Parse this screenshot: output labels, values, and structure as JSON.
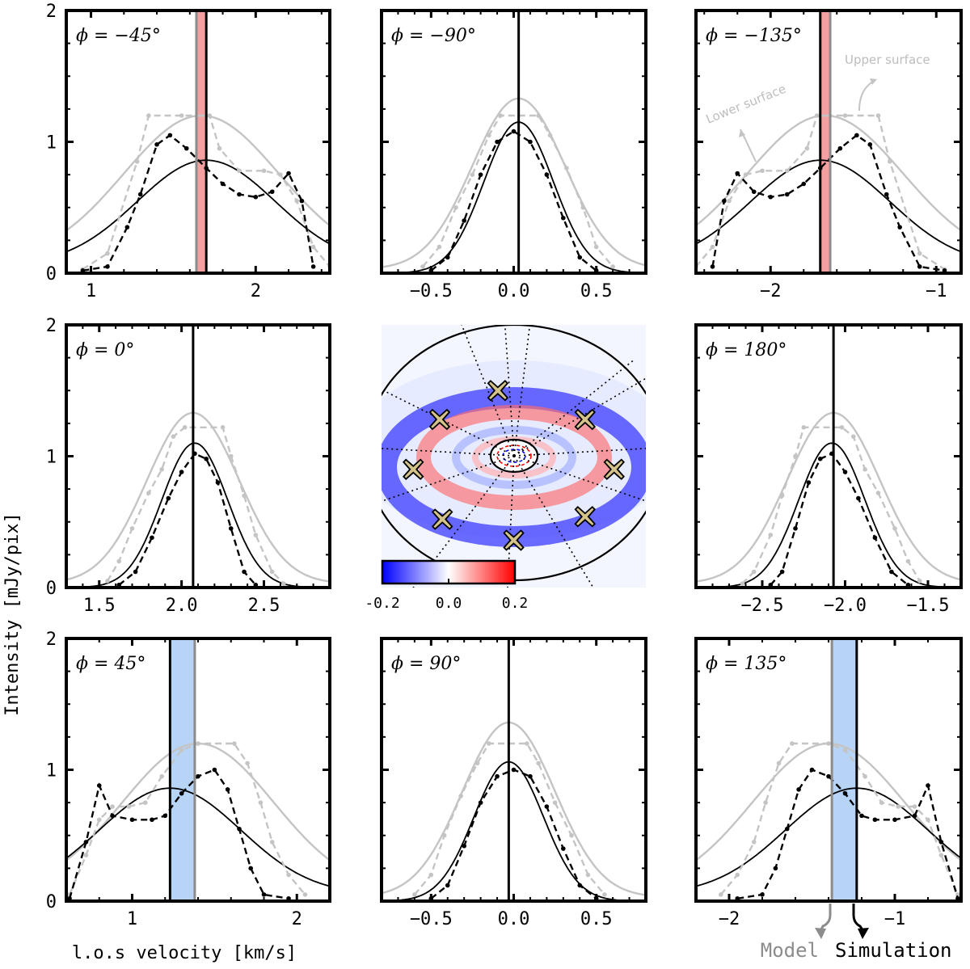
{
  "chart_data": {
    "type": "line",
    "ylabel": "Intensity [mJy/pix]",
    "xlabel": "l.o.s velocity [km/s]",
    "ylim": [
      0,
      2
    ],
    "y_ticks": [
      "0",
      "1",
      "2"
    ],
    "legend": {
      "model": "Model",
      "simulation": "Simulation"
    },
    "annotations": {
      "lower_surface": "Lower surface",
      "upper_surface": "Upper surface"
    },
    "colors": {
      "model": "#8c8c8c",
      "simulation": "#000000",
      "light": "#c4c4c4",
      "red_band": "#f4a0a0",
      "blue_band": "#b7d4f7"
    },
    "colorbar": {
      "ticks": [
        "-0.2",
        "0.0",
        "0.2"
      ],
      "range": [
        -0.2,
        0.2
      ]
    },
    "map_markers": [
      {
        "ix": 0.44,
        "iy": 0.25
      },
      {
        "ix": 0.22,
        "iy": 0.36
      },
      {
        "ix": 0.77,
        "iy": 0.36
      },
      {
        "ix": 0.12,
        "iy": 0.55
      },
      {
        "ix": 0.88,
        "iy": 0.55
      },
      {
        "ix": 0.23,
        "iy": 0.74
      },
      {
        "ix": 0.77,
        "iy": 0.73
      },
      {
        "ix": 0.5,
        "iy": 0.82
      }
    ],
    "panels": [
      {
        "id": "p-45",
        "phi": "ϕ = −45°",
        "xlim": [
          0.85,
          2.45
        ],
        "x_ticks": [
          {
            "v": 1,
            "label": "1"
          },
          {
            "v": 2,
            "label": "2"
          }
        ],
        "model_v": 1.64,
        "sim_v": 1.7,
        "band": "red",
        "light_curve": {
          "mu": 1.67,
          "sigma": 0.47,
          "amp": 1.2,
          "offset": 0.08
        },
        "black_curve": {
          "mu": 1.7,
          "sigma": 0.42,
          "amp": 0.86,
          "offset": 0.06
        },
        "light_dashed": [
          [
            0.95,
            0.03
          ],
          [
            1.1,
            0.15
          ],
          [
            1.28,
            0.85
          ],
          [
            1.35,
            1.2
          ],
          [
            1.55,
            1.2
          ],
          [
            1.72,
            1.2
          ],
          [
            1.78,
            0.95
          ],
          [
            1.9,
            0.78
          ],
          [
            2.05,
            0.78
          ],
          [
            2.15,
            0.75
          ],
          [
            2.25,
            0.55
          ],
          [
            2.35,
            0.2
          ],
          [
            2.45,
            0.05
          ]
        ],
        "dark_dashed": [
          [
            0.95,
            0.02
          ],
          [
            1.1,
            0.05
          ],
          [
            1.22,
            0.35
          ],
          [
            1.3,
            0.6
          ],
          [
            1.4,
            0.98
          ],
          [
            1.48,
            1.05
          ],
          [
            1.58,
            0.95
          ],
          [
            1.7,
            0.8
          ],
          [
            1.8,
            0.68
          ],
          [
            1.9,
            0.6
          ],
          [
            2.0,
            0.58
          ],
          [
            2.1,
            0.62
          ],
          [
            2.2,
            0.76
          ],
          [
            2.28,
            0.55
          ],
          [
            2.35,
            0.05
          ]
        ]
      },
      {
        "id": "p-90",
        "phi": "ϕ = −90°",
        "xlim": [
          -0.8,
          0.8
        ],
        "x_ticks": [
          {
            "v": -0.5,
            "label": "−0.5"
          },
          {
            "v": 0,
            "label": "0.0"
          },
          {
            "v": 0.5,
            "label": "0.5"
          }
        ],
        "model_v": 0.03,
        "sim_v": 0.03,
        "band": "none",
        "light_curve": {
          "mu": 0.03,
          "sigma": 0.28,
          "amp": 1.33,
          "offset": 0.03
        },
        "black_curve": {
          "mu": 0.03,
          "sigma": 0.21,
          "amp": 1.15,
          "offset": 0.0
        },
        "light_dashed": [
          [
            -0.55,
            0.05
          ],
          [
            -0.45,
            0.2
          ],
          [
            -0.35,
            0.5
          ],
          [
            -0.25,
            0.75
          ],
          [
            -0.15,
            1.05
          ],
          [
            -0.08,
            1.2
          ],
          [
            0.15,
            1.2
          ],
          [
            0.22,
            1.05
          ],
          [
            0.32,
            0.8
          ],
          [
            0.42,
            0.5
          ],
          [
            0.5,
            0.2
          ],
          [
            0.6,
            0.05
          ]
        ],
        "dark_dashed": [
          [
            -0.5,
            0.02
          ],
          [
            -0.4,
            0.12
          ],
          [
            -0.3,
            0.4
          ],
          [
            -0.2,
            0.75
          ],
          [
            -0.1,
            1.0
          ],
          [
            0.0,
            1.08
          ],
          [
            0.1,
            1.0
          ],
          [
            0.2,
            0.75
          ],
          [
            0.3,
            0.42
          ],
          [
            0.4,
            0.12
          ],
          [
            0.5,
            0.02
          ]
        ]
      },
      {
        "id": "p-135",
        "phi": "ϕ = −135°",
        "xlim": [
          -2.45,
          -0.85
        ],
        "x_ticks": [
          {
            "v": -2,
            "label": "−2"
          },
          {
            "v": -1,
            "label": "−1"
          }
        ],
        "model_v": -1.64,
        "sim_v": -1.7,
        "band": "red",
        "light_curve": {
          "mu": -1.67,
          "sigma": 0.47,
          "amp": 1.2,
          "offset": 0.08
        },
        "black_curve": {
          "mu": -1.7,
          "sigma": 0.42,
          "amp": 0.86,
          "offset": 0.06
        },
        "light_dashed": [
          [
            -2.45,
            0.05
          ],
          [
            -2.35,
            0.2
          ],
          [
            -2.25,
            0.55
          ],
          [
            -2.15,
            0.75
          ],
          [
            -2.05,
            0.78
          ],
          [
            -1.9,
            0.78
          ],
          [
            -1.78,
            0.95
          ],
          [
            -1.72,
            1.2
          ],
          [
            -1.55,
            1.2
          ],
          [
            -1.35,
            1.2
          ],
          [
            -1.28,
            0.85
          ],
          [
            -1.1,
            0.15
          ],
          [
            -0.95,
            0.03
          ]
        ],
        "dark_dashed": [
          [
            -2.35,
            0.05
          ],
          [
            -2.28,
            0.55
          ],
          [
            -2.2,
            0.76
          ],
          [
            -2.1,
            0.62
          ],
          [
            -2.0,
            0.58
          ],
          [
            -1.9,
            0.6
          ],
          [
            -1.8,
            0.68
          ],
          [
            -1.7,
            0.8
          ],
          [
            -1.58,
            0.95
          ],
          [
            -1.48,
            1.05
          ],
          [
            -1.4,
            0.98
          ],
          [
            -1.3,
            0.6
          ],
          [
            -1.22,
            0.35
          ],
          [
            -1.1,
            0.05
          ],
          [
            -0.95,
            0.02
          ]
        ]
      },
      {
        "id": "p0",
        "phi": "ϕ = 0°",
        "xlim": [
          1.3,
          2.9
        ],
        "x_ticks": [
          {
            "v": 1.5,
            "label": "1.5"
          },
          {
            "v": 2.0,
            "label": "2.0"
          },
          {
            "v": 2.5,
            "label": "2.5"
          }
        ],
        "model_v": 2.07,
        "sim_v": 2.07,
        "band": "none",
        "light_curve": {
          "mu": 2.07,
          "sigma": 0.28,
          "amp": 1.33,
          "offset": 0.03
        },
        "black_curve": {
          "mu": 2.08,
          "sigma": 0.2,
          "amp": 1.1,
          "offset": 0.0
        },
        "light_dashed": [
          [
            1.55,
            0.05
          ],
          [
            1.62,
            0.2
          ],
          [
            1.7,
            0.45
          ],
          [
            1.8,
            0.72
          ],
          [
            1.88,
            0.9
          ],
          [
            1.95,
            1.15
          ],
          [
            2.02,
            1.22
          ],
          [
            2.25,
            1.22
          ],
          [
            2.3,
            1.0
          ],
          [
            2.38,
            0.7
          ],
          [
            2.45,
            0.4
          ],
          [
            2.55,
            0.12
          ],
          [
            2.62,
            0.03
          ]
        ],
        "dark_dashed": [
          [
            1.62,
            0.02
          ],
          [
            1.72,
            0.12
          ],
          [
            1.82,
            0.38
          ],
          [
            1.92,
            0.68
          ],
          [
            2.0,
            0.88
          ],
          [
            2.08,
            1.02
          ],
          [
            2.15,
            0.98
          ],
          [
            2.22,
            0.8
          ],
          [
            2.3,
            0.45
          ],
          [
            2.38,
            0.12
          ],
          [
            2.45,
            0.02
          ]
        ]
      },
      {
        "id": "p180",
        "phi": "ϕ = 180°",
        "xlim": [
          -2.9,
          -1.3
        ],
        "x_ticks": [
          {
            "v": -2.5,
            "label": "−2.5"
          },
          {
            "v": -2.0,
            "label": "−2.0"
          },
          {
            "v": -1.5,
            "label": "−1.5"
          }
        ],
        "model_v": -2.07,
        "sim_v": -2.07,
        "band": "none",
        "light_curve": {
          "mu": -2.07,
          "sigma": 0.28,
          "amp": 1.33,
          "offset": 0.03
        },
        "black_curve": {
          "mu": -2.08,
          "sigma": 0.2,
          "amp": 1.1,
          "offset": 0.0
        },
        "light_dashed": [
          [
            -2.62,
            0.03
          ],
          [
            -2.55,
            0.12
          ],
          [
            -2.45,
            0.4
          ],
          [
            -2.38,
            0.7
          ],
          [
            -2.3,
            1.0
          ],
          [
            -2.25,
            1.22
          ],
          [
            -2.02,
            1.22
          ],
          [
            -1.95,
            1.15
          ],
          [
            -1.88,
            0.9
          ],
          [
            -1.8,
            0.72
          ],
          [
            -1.7,
            0.45
          ],
          [
            -1.62,
            0.2
          ],
          [
            -1.55,
            0.05
          ]
        ],
        "dark_dashed": [
          [
            -2.45,
            0.02
          ],
          [
            -2.38,
            0.12
          ],
          [
            -2.3,
            0.45
          ],
          [
            -2.22,
            0.8
          ],
          [
            -2.15,
            0.98
          ],
          [
            -2.08,
            1.02
          ],
          [
            -2.0,
            0.88
          ],
          [
            -1.92,
            0.68
          ],
          [
            -1.82,
            0.38
          ],
          [
            -1.72,
            0.12
          ],
          [
            -1.62,
            0.02
          ]
        ]
      },
      {
        "id": "p45",
        "phi": "ϕ = 45°",
        "xlim": [
          0.6,
          2.2
        ],
        "x_ticks": [
          {
            "v": 1,
            "label": "1"
          },
          {
            "v": 2,
            "label": "2"
          }
        ],
        "model_v": 1.38,
        "sim_v": 1.23,
        "band": "blue",
        "light_curve": {
          "mu": 1.4,
          "sigma": 0.46,
          "amp": 1.2,
          "offset": 0.06
        },
        "black_curve": {
          "mu": 1.23,
          "sigma": 0.43,
          "amp": 0.86,
          "offset": 0.05
        },
        "light_dashed": [
          [
            0.62,
            0.05
          ],
          [
            0.72,
            0.35
          ],
          [
            0.8,
            0.62
          ],
          [
            0.88,
            0.72
          ],
          [
            0.98,
            0.72
          ],
          [
            1.08,
            0.75
          ],
          [
            1.18,
            0.95
          ],
          [
            1.3,
            1.15
          ],
          [
            1.4,
            1.2
          ],
          [
            1.62,
            1.2
          ],
          [
            1.7,
            1.05
          ],
          [
            1.78,
            0.75
          ],
          [
            1.85,
            0.45
          ],
          [
            1.95,
            0.2
          ],
          [
            2.05,
            0.05
          ]
        ],
        "dark_dashed": [
          [
            0.62,
            0.02
          ],
          [
            0.72,
            0.45
          ],
          [
            0.8,
            0.88
          ],
          [
            0.88,
            0.65
          ],
          [
            1.0,
            0.62
          ],
          [
            1.12,
            0.62
          ],
          [
            1.2,
            0.65
          ],
          [
            1.3,
            0.82
          ],
          [
            1.4,
            0.95
          ],
          [
            1.5,
            1.0
          ],
          [
            1.58,
            0.85
          ],
          [
            1.65,
            0.55
          ],
          [
            1.72,
            0.25
          ],
          [
            1.8,
            0.05
          ],
          [
            1.95,
            0.02
          ]
        ]
      },
      {
        "id": "p90",
        "phi": "ϕ = 90°",
        "xlim": [
          -0.8,
          0.8
        ],
        "x_ticks": [
          {
            "v": -0.5,
            "label": "−0.5"
          },
          {
            "v": 0,
            "label": "0.0"
          },
          {
            "v": 0.5,
            "label": "0.5"
          }
        ],
        "model_v": -0.03,
        "sim_v": -0.03,
        "band": "none",
        "light_curve": {
          "mu": -0.03,
          "sigma": 0.28,
          "amp": 1.36,
          "offset": 0.03
        },
        "black_curve": {
          "mu": -0.03,
          "sigma": 0.21,
          "amp": 1.06,
          "offset": 0.0
        },
        "light_dashed": [
          [
            -0.6,
            0.05
          ],
          [
            -0.5,
            0.2
          ],
          [
            -0.42,
            0.5
          ],
          [
            -0.32,
            0.8
          ],
          [
            -0.22,
            1.05
          ],
          [
            -0.15,
            1.2
          ],
          [
            0.08,
            1.2
          ],
          [
            0.15,
            1.05
          ],
          [
            0.25,
            0.75
          ],
          [
            0.35,
            0.5
          ],
          [
            0.45,
            0.2
          ],
          [
            0.55,
            0.05
          ]
        ],
        "dark_dashed": [
          [
            -0.5,
            0.02
          ],
          [
            -0.4,
            0.12
          ],
          [
            -0.3,
            0.42
          ],
          [
            -0.2,
            0.75
          ],
          [
            -0.1,
            0.95
          ],
          [
            0.0,
            1.0
          ],
          [
            0.1,
            0.95
          ],
          [
            0.2,
            0.72
          ],
          [
            0.3,
            0.4
          ],
          [
            0.4,
            0.12
          ],
          [
            0.5,
            0.02
          ]
        ]
      },
      {
        "id": "p135",
        "phi": "ϕ = 135°",
        "xlim": [
          -2.2,
          -0.6
        ],
        "x_ticks": [
          {
            "v": -2,
            "label": "−2"
          },
          {
            "v": -1,
            "label": "−1"
          }
        ],
        "model_v": -1.38,
        "sim_v": -1.23,
        "band": "blue",
        "light_curve": {
          "mu": -1.4,
          "sigma": 0.46,
          "amp": 1.2,
          "offset": 0.06
        },
        "black_curve": {
          "mu": -1.23,
          "sigma": 0.43,
          "amp": 0.86,
          "offset": 0.05
        },
        "light_dashed": [
          [
            -2.05,
            0.05
          ],
          [
            -1.95,
            0.2
          ],
          [
            -1.85,
            0.45
          ],
          [
            -1.78,
            0.75
          ],
          [
            -1.7,
            1.05
          ],
          [
            -1.62,
            1.2
          ],
          [
            -1.4,
            1.2
          ],
          [
            -1.3,
            1.15
          ],
          [
            -1.18,
            0.95
          ],
          [
            -1.08,
            0.75
          ],
          [
            -0.98,
            0.72
          ],
          [
            -0.88,
            0.72
          ],
          [
            -0.8,
            0.62
          ],
          [
            -0.72,
            0.35
          ],
          [
            -0.62,
            0.05
          ]
        ],
        "dark_dashed": [
          [
            -1.95,
            0.02
          ],
          [
            -1.8,
            0.05
          ],
          [
            -1.72,
            0.25
          ],
          [
            -1.65,
            0.55
          ],
          [
            -1.58,
            0.85
          ],
          [
            -1.5,
            1.0
          ],
          [
            -1.4,
            0.95
          ],
          [
            -1.3,
            0.82
          ],
          [
            -1.2,
            0.65
          ],
          [
            -1.12,
            0.62
          ],
          [
            -1.0,
            0.62
          ],
          [
            -0.88,
            0.65
          ],
          [
            -0.8,
            0.88
          ],
          [
            -0.72,
            0.45
          ],
          [
            -0.62,
            0.02
          ]
        ]
      }
    ]
  }
}
